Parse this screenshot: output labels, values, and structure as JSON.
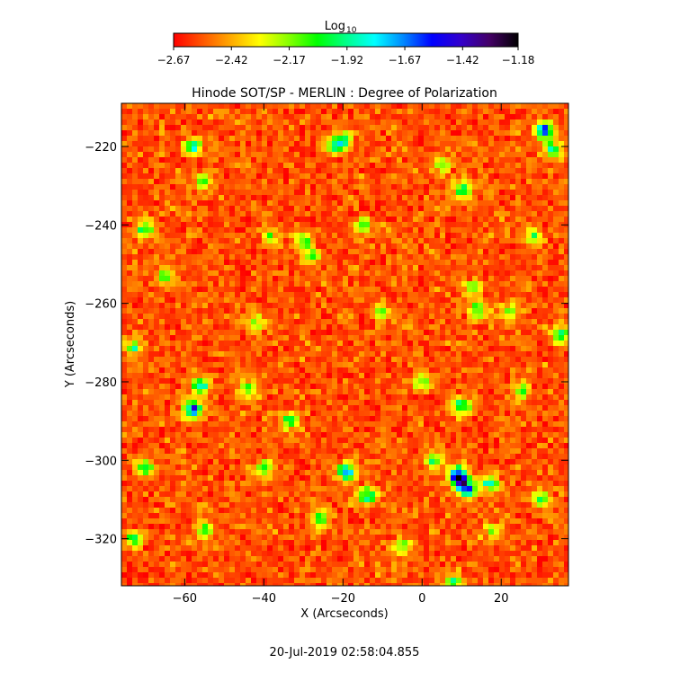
{
  "chart_data": {
    "type": "heatmap",
    "title": "Hinode SOT/SP - MERLIN : Degree of Polarization",
    "xlabel": "X (Arcseconds)",
    "ylabel": "Y (Arcseconds)",
    "xlim": [
      -76,
      37
    ],
    "ylim": [
      -332,
      -209
    ],
    "x_ticks": [
      -60,
      -40,
      -20,
      0,
      20
    ],
    "y_ticks": [
      -220,
      -240,
      -260,
      -280,
      -300,
      -320
    ],
    "colorbar": {
      "label_main": "Log",
      "label_sub": "10",
      "range": [
        -2.67,
        -1.18
      ],
      "ticks": [
        -2.67,
        -2.42,
        -2.17,
        -1.92,
        -1.67,
        -1.42,
        -1.18
      ],
      "tick_labels": [
        "−2.67",
        "−2.42",
        "−2.17",
        "−1.92",
        "−1.67",
        "−1.42",
        "−1.18"
      ],
      "colors": [
        "#ff0000",
        "#ff5500",
        "#ffaa00",
        "#ffff00",
        "#88ff00",
        "#00ff00",
        "#00ff88",
        "#00ffff",
        "#0088ff",
        "#0000ff",
        "#3300cc",
        "#440066",
        "#000000"
      ]
    },
    "field_stats": {
      "background_mean": -2.55,
      "noise_sd": 0.08
    },
    "features": [
      {
        "x": -58,
        "y": -220,
        "peak": -1.95
      },
      {
        "x": -55,
        "y": -229,
        "peak": -2.05
      },
      {
        "x": -70,
        "y": -241,
        "peak": -2.0
      },
      {
        "x": -65,
        "y": -253,
        "peak": -2.05
      },
      {
        "x": -30,
        "y": -244,
        "peak": -2.0
      },
      {
        "x": -28,
        "y": -248,
        "peak": -2.1
      },
      {
        "x": -38,
        "y": -243,
        "peak": -2.15
      },
      {
        "x": -22,
        "y": -220,
        "peak": -1.95
      },
      {
        "x": -20,
        "y": -218,
        "peak": -2.0
      },
      {
        "x": -15,
        "y": -240,
        "peak": -2.15
      },
      {
        "x": 5,
        "y": -225,
        "peak": -2.1
      },
      {
        "x": 10,
        "y": -231,
        "peak": -1.85
      },
      {
        "x": 31,
        "y": -216,
        "peak": -1.6
      },
      {
        "x": 33,
        "y": -221,
        "peak": -1.95
      },
      {
        "x": 13,
        "y": -256,
        "peak": -2.1
      },
      {
        "x": 14,
        "y": -262,
        "peak": -2.0
      },
      {
        "x": 22,
        "y": -262,
        "peak": -2.1
      },
      {
        "x": 35,
        "y": -268,
        "peak": -1.95
      },
      {
        "x": -73,
        "y": -271,
        "peak": -2.0
      },
      {
        "x": -56,
        "y": -281,
        "peak": -1.85
      },
      {
        "x": -58,
        "y": -287,
        "peak": -1.55
      },
      {
        "x": -44,
        "y": -282,
        "peak": -2.05
      },
      {
        "x": -33,
        "y": -290,
        "peak": -2.0
      },
      {
        "x": 0,
        "y": -280,
        "peak": -2.1
      },
      {
        "x": 10,
        "y": -286,
        "peak": -1.9
      },
      {
        "x": 25,
        "y": -282,
        "peak": -2.05
      },
      {
        "x": -70,
        "y": -302,
        "peak": -2.05
      },
      {
        "x": -40,
        "y": -302,
        "peak": -2.05
      },
      {
        "x": -19,
        "y": -303,
        "peak": -1.55
      },
      {
        "x": -14,
        "y": -309,
        "peak": -1.85
      },
      {
        "x": 9,
        "y": -304,
        "peak": -1.3
      },
      {
        "x": 11,
        "y": -307,
        "peak": -1.35
      },
      {
        "x": 17,
        "y": -306,
        "peak": -1.85
      },
      {
        "x": 3,
        "y": -300,
        "peak": -2.0
      },
      {
        "x": -26,
        "y": -315,
        "peak": -2.0
      },
      {
        "x": -55,
        "y": -318,
        "peak": -2.05
      },
      {
        "x": -73,
        "y": -320,
        "peak": -2.05
      },
      {
        "x": 30,
        "y": -310,
        "peak": -2.0
      },
      {
        "x": 18,
        "y": -318,
        "peak": -2.1
      },
      {
        "x": -5,
        "y": -322,
        "peak": -2.1
      },
      {
        "x": 8,
        "y": -331,
        "peak": -1.95
      },
      {
        "x": -42,
        "y": -265,
        "peak": -2.15
      },
      {
        "x": 28,
        "y": -243,
        "peak": -2.1
      },
      {
        "x": -10,
        "y": -262,
        "peak": -2.2
      }
    ]
  },
  "footer": {
    "timestamp": "20-Jul-2019 02:58:04.855"
  }
}
